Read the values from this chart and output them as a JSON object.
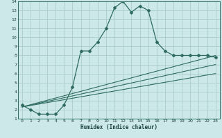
{
  "xlabel": "Humidex (Indice chaleur)",
  "ylabel": "",
  "bg_color": "#cce8e8",
  "grid_color": "#aacccc",
  "line_color": "#2e6b5e",
  "text_color": "#1a4040",
  "xlim": [
    -0.5,
    23.5
  ],
  "ylim": [
    1,
    14
  ],
  "xticks": [
    0,
    1,
    2,
    3,
    4,
    5,
    6,
    7,
    8,
    9,
    10,
    11,
    12,
    13,
    14,
    15,
    16,
    17,
    18,
    19,
    20,
    21,
    22,
    23
  ],
  "yticks": [
    1,
    2,
    3,
    4,
    5,
    6,
    7,
    8,
    9,
    10,
    11,
    12,
    13,
    14
  ],
  "main_x": [
    0,
    1,
    2,
    3,
    4,
    5,
    6,
    7,
    8,
    9,
    10,
    11,
    12,
    13,
    14,
    15,
    16,
    17,
    18,
    19,
    20,
    21,
    22,
    23
  ],
  "main_y": [
    2.5,
    2.0,
    1.5,
    1.5,
    1.5,
    2.5,
    4.5,
    8.5,
    8.5,
    9.5,
    11.0,
    13.3,
    14.0,
    12.8,
    13.5,
    13.0,
    9.5,
    8.5,
    8.0,
    8.0,
    8.0,
    8.0,
    8.0,
    7.8
  ],
  "line1_y_start": 2.3,
  "line1_y_end": 8.0,
  "line2_y_start": 2.3,
  "line2_y_end": 7.0,
  "line3_y_start": 2.3,
  "line3_y_end": 6.0,
  "lines_x_start": 0,
  "lines_x_end": 23
}
